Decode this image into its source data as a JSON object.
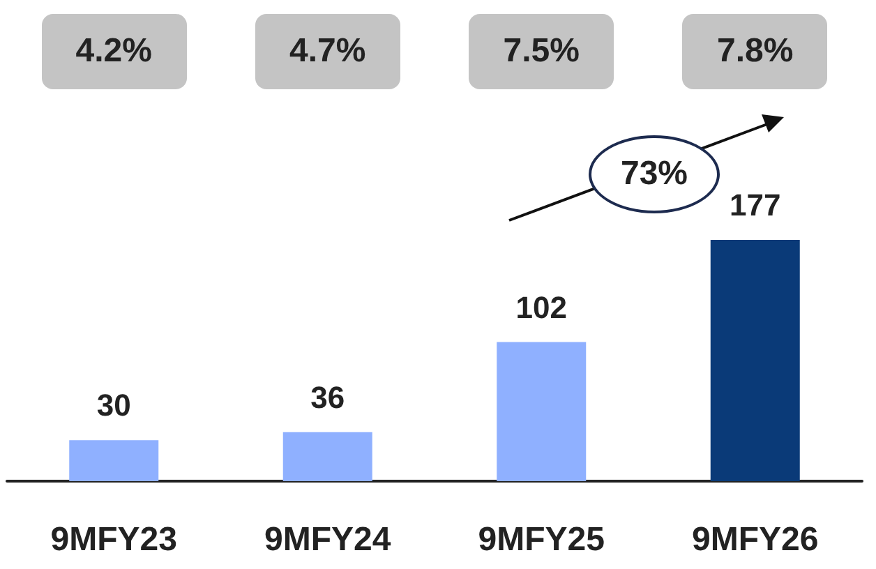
{
  "chart_data": {
    "type": "bar",
    "categories": [
      "9MFY23",
      "9MFY24",
      "9MFY25",
      "9MFY26"
    ],
    "values": [
      30,
      36,
      102,
      177
    ],
    "colors": [
      "#8fb0ff",
      "#8fb0ff",
      "#8fb0ff",
      "#0a3a78"
    ],
    "data_labels": true,
    "annotations": [
      "4.2%",
      "4.7%",
      "7.5%",
      "7.8%",
      "73%"
    ]
  }
}
